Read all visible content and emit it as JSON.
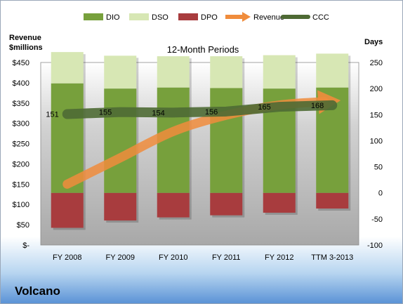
{
  "company": "Volcano",
  "chart_data": {
    "type": "bar",
    "title": "12-Month Periods",
    "categories": [
      "FY 2008",
      "FY 2009",
      "FY 2010",
      "FY 2011",
      "FY 2012",
      "TTM 3-2013"
    ],
    "left_axis": {
      "label_line1": "Revenue",
      "label_line2": "$millions",
      "ylim": [
        0,
        450
      ],
      "ticks": [
        "$-",
        "$50",
        "$100",
        "$150",
        "$200",
        "$250",
        "$300",
        "$350",
        "$400",
        "$450"
      ]
    },
    "right_axis": {
      "label": "Days",
      "ylim": [
        -100,
        250
      ],
      "ticks": [
        "-100",
        "-50",
        "0",
        "50",
        "100",
        "150",
        "200",
        "250"
      ]
    },
    "legend": {
      "position": "top",
      "items": [
        {
          "name": "DIO",
          "color": "#77a03c",
          "kind": "box"
        },
        {
          "name": "DSO",
          "color": "#d7e7b4",
          "kind": "box"
        },
        {
          "name": "DPO",
          "color": "#a83c3e",
          "kind": "box"
        },
        {
          "name": "Revenue",
          "color": "#f08c3c",
          "kind": "arrow"
        },
        {
          "name": "CCC",
          "color": "#4e6a34",
          "kind": "line"
        }
      ]
    },
    "series": [
      {
        "name": "DIO",
        "axis": "days",
        "values": [
          210,
          200,
          202,
          201,
          200,
          202
        ]
      },
      {
        "name": "DSO",
        "axis": "days",
        "values": [
          60,
          63,
          60,
          61,
          64,
          65
        ]
      },
      {
        "name": "DPO",
        "axis": "days",
        "values": [
          -67,
          -53,
          -47,
          -43,
          -38,
          -30
        ]
      },
      {
        "name": "Revenue",
        "axis": "revenue",
        "values": [
          150,
          215,
          280,
          320,
          345,
          355
        ]
      },
      {
        "name": "CCC",
        "axis": "days",
        "values": [
          151,
          155,
          154,
          156,
          165,
          168
        ],
        "labels": [
          "151",
          "155",
          "154",
          "156",
          "165",
          "168"
        ]
      }
    ],
    "grid": false
  }
}
